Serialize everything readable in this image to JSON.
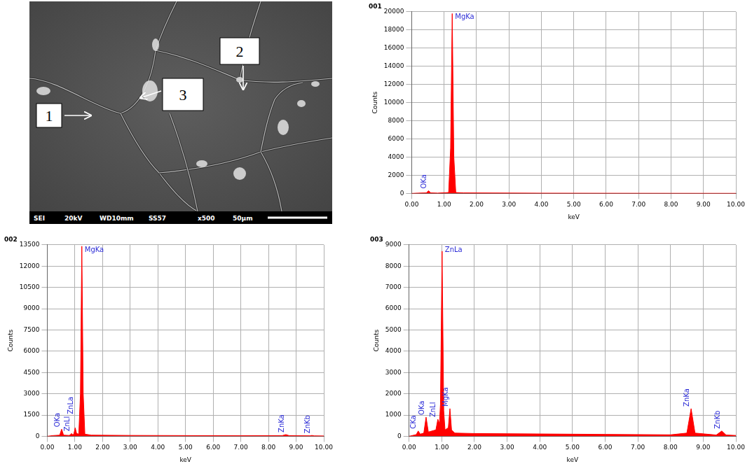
{
  "micrograph": {
    "labels": [
      "1",
      "2",
      "3"
    ],
    "info_bar": [
      "SEI",
      "20kV",
      "WD10mm",
      "SS57",
      "x500",
      "50µm"
    ]
  },
  "chart_data": [
    {
      "type": "line",
      "title": "001",
      "x_label": "keV",
      "y_label": "Counts",
      "color": "#ff0000",
      "grid": true,
      "x": [
        0,
        0.2,
        0.45,
        0.52,
        0.59,
        0.8,
        1.14,
        1.2,
        1.25,
        1.3,
        1.36,
        1.6,
        2.5,
        4,
        6,
        8,
        10
      ],
      "values": [
        0,
        40,
        60,
        300,
        60,
        40,
        100,
        5000,
        19800,
        4000,
        100,
        60,
        50,
        30,
        20,
        15,
        10
      ],
      "xlim": [
        0,
        10
      ],
      "xticks": [
        {
          "value": 0,
          "label": "0.00"
        },
        {
          "value": 1,
          "label": "1.00"
        },
        {
          "value": 2,
          "label": "2.00"
        },
        {
          "value": 3,
          "label": "3.00"
        },
        {
          "value": 4,
          "label": "4.00"
        },
        {
          "value": 5,
          "label": "5.00"
        },
        {
          "value": 6,
          "label": "6.00"
        },
        {
          "value": 7,
          "label": "7.00"
        },
        {
          "value": 8,
          "label": "8.00"
        },
        {
          "value": 9,
          "label": "9.00"
        },
        {
          "value": 10,
          "label": "10.00"
        }
      ],
      "ylim": [
        0,
        20000
      ],
      "yticks": [
        0,
        2000,
        4000,
        6000,
        8000,
        10000,
        12000,
        14000,
        16000,
        18000,
        20000
      ],
      "annotations": [
        {
          "x": 0.52,
          "text": "OKa"
        },
        {
          "x": 1.25,
          "text": "MgKa"
        }
      ]
    },
    {
      "type": "line",
      "title": "002",
      "x_label": "keV",
      "y_label": "Counts",
      "color": "#ff0000",
      "grid": true,
      "x": [
        0,
        0.2,
        0.45,
        0.52,
        0.59,
        0.8,
        0.86,
        0.88,
        0.92,
        0.96,
        1.01,
        1.06,
        1.14,
        1.2,
        1.25,
        1.3,
        1.36,
        1.6,
        3,
        5,
        7,
        8.5,
        8.63,
        8.75,
        9.5,
        9.57,
        9.65,
        10
      ],
      "values": [
        0,
        50,
        80,
        500,
        80,
        60,
        150,
        200,
        100,
        150,
        600,
        200,
        150,
        3000,
        13400,
        3000,
        150,
        80,
        60,
        50,
        40,
        50,
        120,
        45,
        35,
        60,
        30,
        25
      ],
      "xlim": [
        0,
        10
      ],
      "xticks": [
        {
          "value": 0,
          "label": "0.00"
        },
        {
          "value": 1,
          "label": "1.00"
        },
        {
          "value": 2,
          "label": "2.00"
        },
        {
          "value": 3,
          "label": "3.00"
        },
        {
          "value": 4,
          "label": "4.00"
        },
        {
          "value": 5,
          "label": "5.00"
        },
        {
          "value": 6,
          "label": "6.00"
        },
        {
          "value": 7,
          "label": "7.00"
        },
        {
          "value": 8,
          "label": "8.00"
        },
        {
          "value": 9,
          "label": "9.00"
        },
        {
          "value": 10,
          "label": "10.00"
        }
      ],
      "ylim": [
        0,
        13500
      ],
      "yticks": [
        0,
        1500,
        3000,
        4500,
        6000,
        7500,
        9000,
        10500,
        12000,
        13500
      ],
      "annotations": [
        {
          "x": 0.52,
          "text": "OKa"
        },
        {
          "x": 0.88,
          "text": "ZnLl"
        },
        {
          "x": 1.01,
          "text": "ZnLa"
        },
        {
          "x": 1.25,
          "text": "MgKa"
        },
        {
          "x": 8.63,
          "text": "ZnKa"
        },
        {
          "x": 9.57,
          "text": "ZnKb"
        }
      ]
    },
    {
      "type": "line",
      "title": "003",
      "x_label": "keV",
      "y_label": "Counts",
      "color": "#ff0000",
      "grid": true,
      "x": [
        0,
        0.22,
        0.28,
        0.34,
        0.45,
        0.52,
        0.59,
        0.82,
        0.88,
        0.93,
        0.96,
        1.01,
        1.06,
        1.1,
        1.2,
        1.25,
        1.3,
        1.4,
        2,
        3,
        4,
        5,
        6,
        7,
        8,
        8.5,
        8.63,
        8.75,
        9.4,
        9.57,
        9.7,
        10
      ],
      "values": [
        0,
        80,
        250,
        100,
        150,
        900,
        200,
        300,
        800,
        600,
        1500,
        8700,
        1200,
        300,
        400,
        1300,
        300,
        150,
        130,
        120,
        110,
        100,
        90,
        80,
        70,
        150,
        1300,
        150,
        60,
        250,
        60,
        40
      ],
      "xlim": [
        0,
        10
      ],
      "xticks": [
        {
          "value": 0,
          "label": "0.00"
        },
        {
          "value": 1,
          "label": "1.00"
        },
        {
          "value": 2,
          "label": "2.00"
        },
        {
          "value": 3,
          "label": "3.00"
        },
        {
          "value": 4,
          "label": "4.00"
        },
        {
          "value": 5,
          "label": "5.00"
        },
        {
          "value": 6,
          "label": "6.00"
        },
        {
          "value": 7,
          "label": "7.00"
        },
        {
          "value": 8,
          "label": "8.00"
        },
        {
          "value": 9,
          "label": "9.00"
        },
        {
          "value": 10,
          "label": "10.00"
        }
      ],
      "ylim": [
        0,
        9000
      ],
      "yticks": [
        0,
        1000,
        2000,
        3000,
        4000,
        5000,
        6000,
        7000,
        8000,
        9000
      ],
      "annotations": [
        {
          "x": 0.28,
          "text": "CKa"
        },
        {
          "x": 0.52,
          "text": "OKa"
        },
        {
          "x": 0.88,
          "text": "ZnLl"
        },
        {
          "x": 1.01,
          "text": "ZnLa"
        },
        {
          "x": 1.25,
          "text": "MgKa"
        },
        {
          "x": 8.63,
          "text": "ZnKa"
        },
        {
          "x": 9.57,
          "text": "ZnKb"
        }
      ]
    }
  ]
}
